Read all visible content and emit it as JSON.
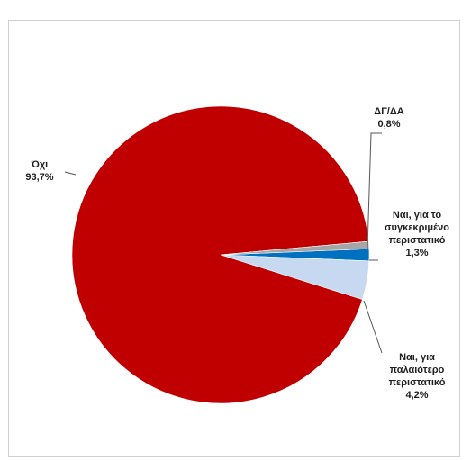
{
  "chart_data": {
    "type": "pie",
    "title": "",
    "slices": [
      {
        "label": "Όχι",
        "value_label": "93,7%",
        "value": 93.7,
        "color": "#c00000"
      },
      {
        "label": "ΔΓ/ΔΑ",
        "value_label": "0,8%",
        "value": 0.8,
        "color": "#a6a6a6"
      },
      {
        "label": "Ναι, για το συγκεκριμένο περιστατικό",
        "value_label": "1,3%",
        "value": 1.3,
        "color": "#0070c0"
      },
      {
        "label": "Ναι, για παλαιότερο περιστατικό",
        "value_label": "4,2%",
        "value": 4.2,
        "color": "#c6d9f1"
      }
    ],
    "legend": "none"
  }
}
